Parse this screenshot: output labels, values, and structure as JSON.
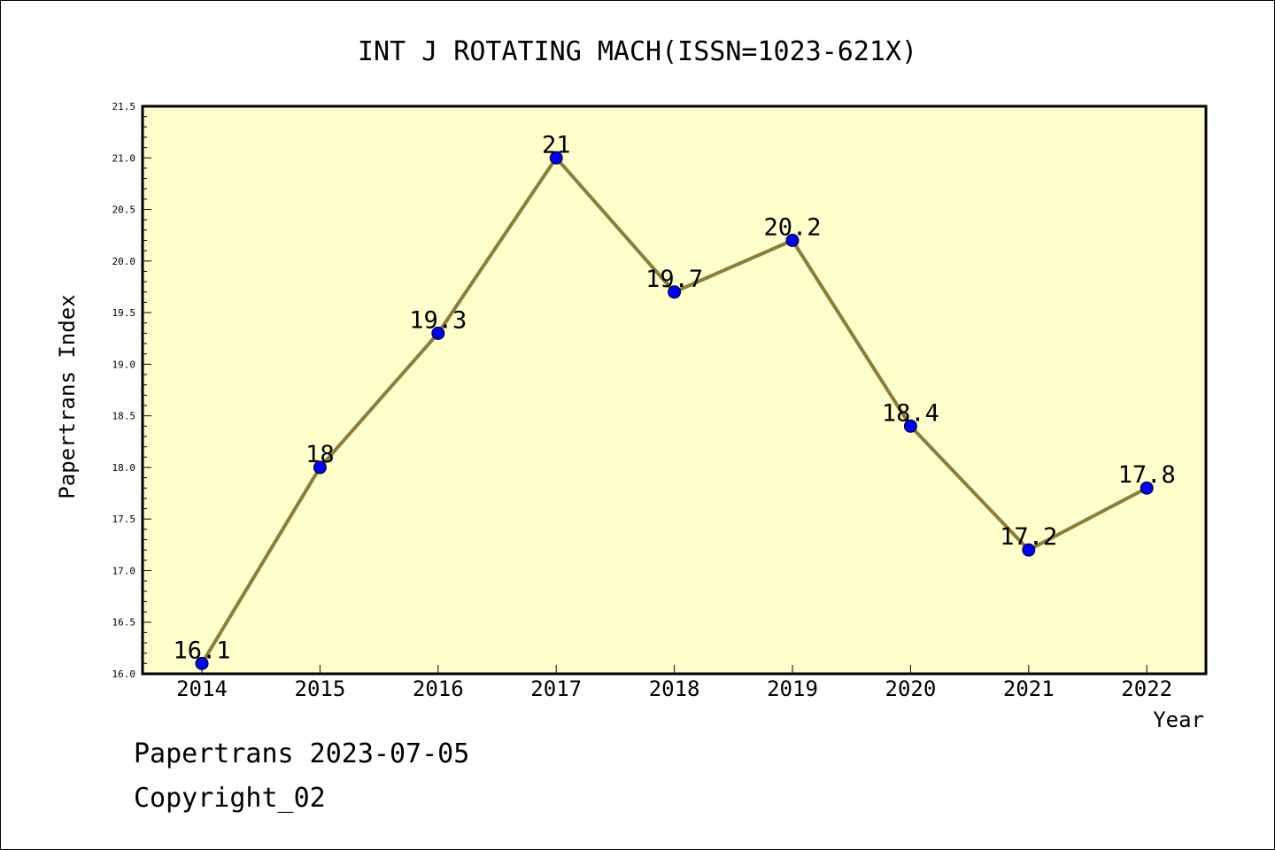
{
  "chart_data": {
    "type": "line",
    "title": "INT J ROTATING MACH(ISSN=1023-621X)",
    "xlabel": "Year",
    "ylabel": "Papertrans Index",
    "categories": [
      "2014",
      "2015",
      "2016",
      "2017",
      "2018",
      "2019",
      "2020",
      "2021",
      "2022"
    ],
    "series": [
      {
        "values": [
          16.1,
          18,
          19.3,
          21,
          19.7,
          20.2,
          18.4,
          17.2,
          17.8
        ],
        "labels": [
          "16.1",
          "18",
          "19.3",
          "21",
          "19.7",
          "20.2",
          "18.4",
          "17.2",
          "17.8"
        ],
        "line_color": "#8b7d3a",
        "marker_color": "#0000ff"
      }
    ],
    "ylim": [
      16.0,
      21.5
    ],
    "ytick_labels": [
      "16.0",
      "16.5",
      "17.0",
      "17.5",
      "18.0",
      "18.5",
      "19.0",
      "19.5",
      "20.0",
      "20.5",
      "21.0",
      "21.5"
    ],
    "plot_background": "#ffffcc",
    "grid": false
  },
  "footer": {
    "line1": "Papertrans 2023-07-05",
    "line2": "Copyright_02"
  }
}
